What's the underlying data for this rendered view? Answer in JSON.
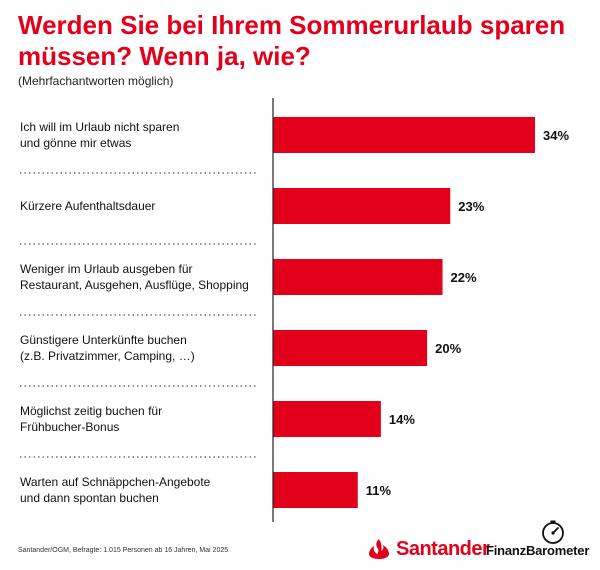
{
  "title": "Werden Sie bei Ihrem Sommerurlaub sparen müssen? Wenn ja, wie?",
  "subtitle": "(Mehrfachantworten möglich)",
  "footer": "Santander/OGM, Befragte: 1.015 Personen ab 16 Jahren, Mai 2025",
  "brand": {
    "name": "Santander",
    "sub": "FinanzBarometer",
    "logo_icon": "flame-icon",
    "badge_icon": "gauge-icon"
  },
  "colors": {
    "bar": "#e2001a",
    "title": "#e2001a",
    "text": "#111111",
    "axis": "#222222",
    "divider": "#555555"
  },
  "chart_data": {
    "type": "bar",
    "orientation": "horizontal",
    "categories": [
      [
        "Ich will im Urlaub nicht sparen",
        "und gönne mir etwas"
      ],
      [
        "Kürzere Aufenthaltsdauer"
      ],
      [
        "Weniger im Urlaub ausgeben für",
        "Restaurant, Ausgehen, Ausflüge, Shopping"
      ],
      [
        "Günstigere Unterkünfte buchen",
        "(z.B. Privatzimmer, Camping, …)"
      ],
      [
        "Möglichst zeitig buchen für",
        "Frühbucher-Bonus"
      ],
      [
        "Warten auf Schnäppchen-Angebote",
        "und dann spontan buchen"
      ]
    ],
    "values": [
      34,
      23,
      22,
      20,
      14,
      11
    ],
    "value_labels": [
      "34%",
      "23%",
      "22%",
      "20%",
      "14%",
      "11%"
    ],
    "xlim": [
      0,
      34
    ],
    "grid": false,
    "legend": "none"
  }
}
